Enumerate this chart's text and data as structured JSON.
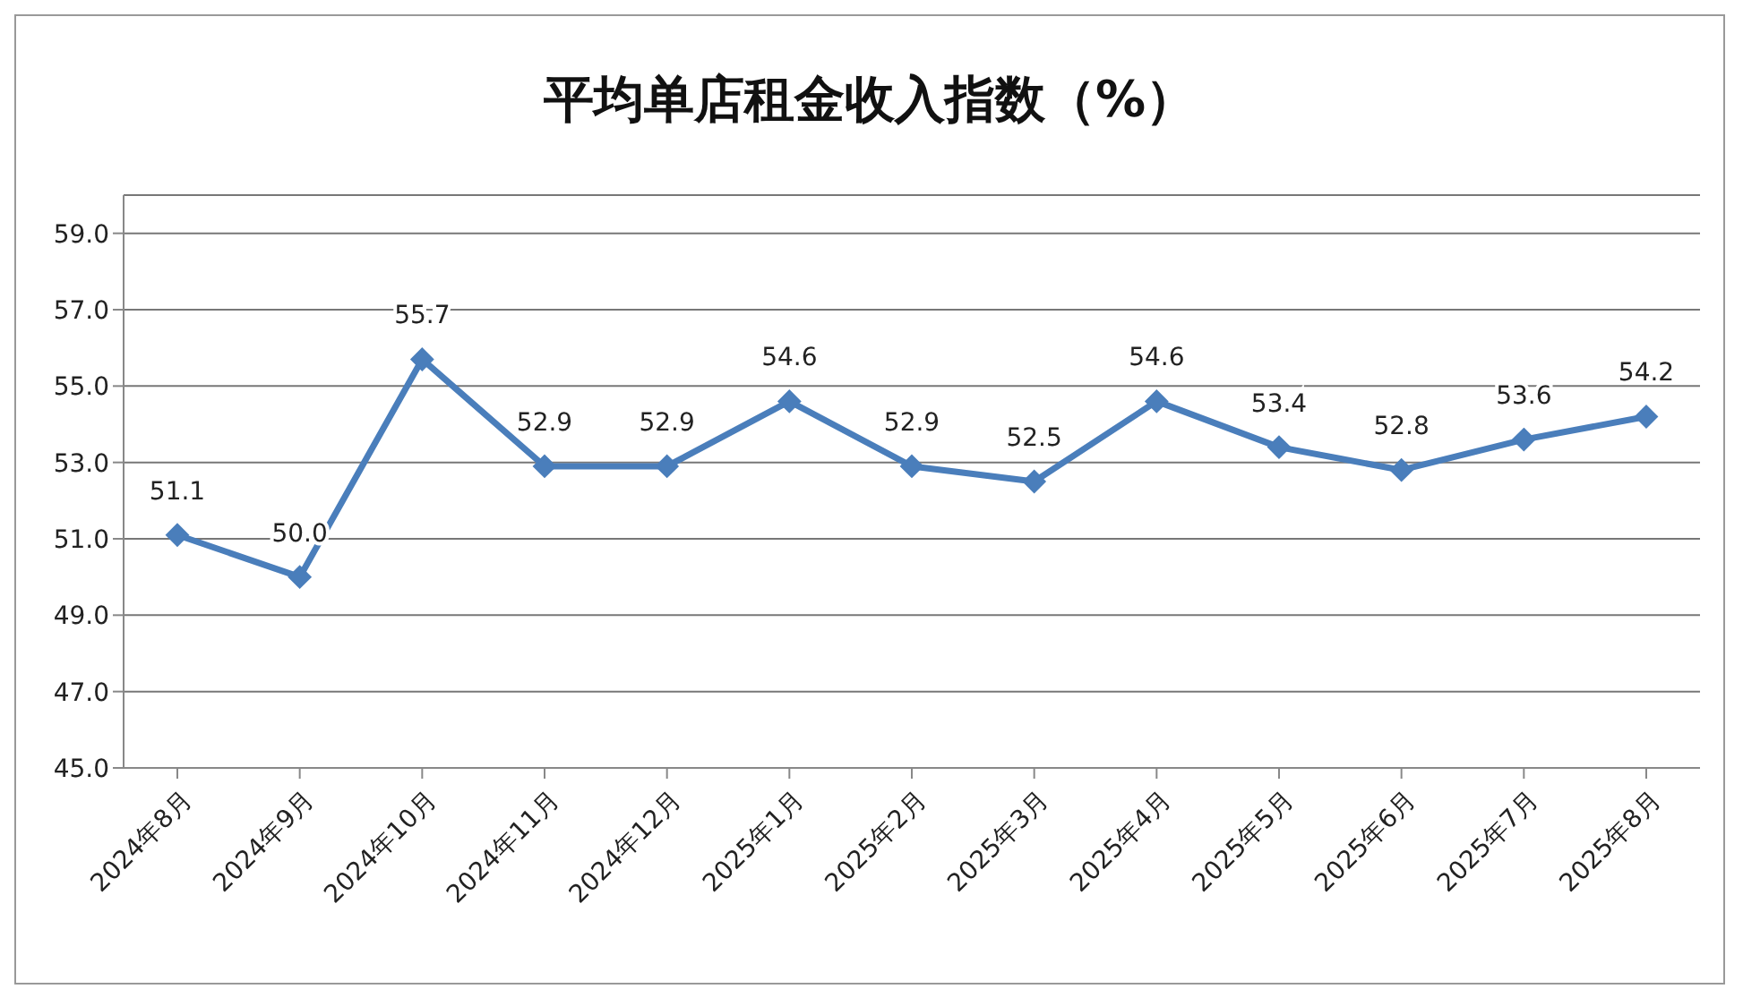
{
  "chart_data": {
    "type": "line",
    "title": "平均单店租金收入指数（%）",
    "categories": [
      "2024年8月",
      "2024年9月",
      "2024年10月",
      "2024年11月",
      "2024年12月",
      "2025年1月",
      "2025年2月",
      "2025年3月",
      "2025年4月",
      "2025年5月",
      "2025年6月",
      "2025年7月",
      "2025年8月"
    ],
    "series": [
      {
        "color": "#4a7ebb",
        "values": [
          51.1,
          50.0,
          55.7,
          52.9,
          52.9,
          54.6,
          52.9,
          52.5,
          54.6,
          53.4,
          52.8,
          53.6,
          54.2
        ],
        "value_labels": [
          "51.1",
          "50.0",
          "55.7",
          "52.9",
          "52.9",
          "54.6",
          "52.9",
          "52.5",
          "54.6",
          "53.4",
          "52.8",
          "53.6",
          "54.2"
        ]
      }
    ],
    "ylim": [
      45,
      60
    ],
    "yticks": [
      {
        "value": 45,
        "label": "45.0"
      },
      {
        "value": 47,
        "label": "47.0"
      },
      {
        "value": 49,
        "label": "49.0"
      },
      {
        "value": 51,
        "label": "51.0"
      },
      {
        "value": 53,
        "label": "53.0"
      },
      {
        "value": 55,
        "label": "55.0"
      },
      {
        "value": 57,
        "label": "57.0"
      },
      {
        "value": 59,
        "label": "59.0"
      }
    ],
    "grid": "y",
    "legend": false,
    "marker": "diamond",
    "line_style": "solid"
  }
}
